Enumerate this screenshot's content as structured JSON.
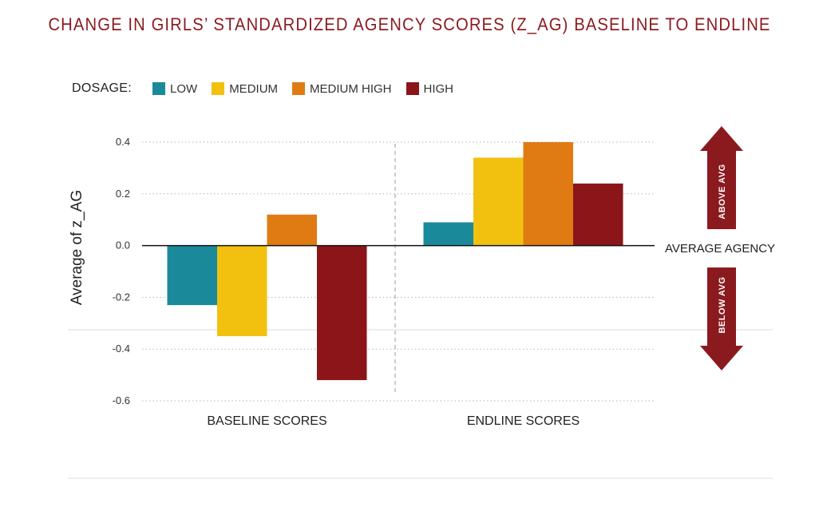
{
  "chart_data": {
    "type": "bar",
    "title": "CHANGE IN GIRLS’ STANDARDIZED AGENCY SCORES (Z_AG) BASELINE TO ENDLINE",
    "ylabel": "Average of z_AG",
    "xlabel": "",
    "categories": [
      "BASELINE SCORES",
      "ENDLINE SCORES"
    ],
    "legend_title": "DOSAGE:",
    "legend_position": "top-left",
    "series": [
      {
        "name": "LOW",
        "color": "#1a8a9b",
        "values": [
          -0.23,
          0.09
        ]
      },
      {
        "name": "MEDIUM",
        "color": "#f2c10f",
        "values": [
          -0.35,
          0.34
        ]
      },
      {
        "name": "MEDIUM HIGH",
        "color": "#e07b14",
        "values": [
          0.12,
          0.4
        ]
      },
      {
        "name": "HIGH",
        "color": "#8b1519",
        "values": [
          -0.52,
          0.24
        ]
      }
    ],
    "ylim": [
      -0.6,
      0.4
    ],
    "yticks": [
      0.4,
      0.2,
      0.0,
      -0.2,
      -0.4,
      -0.6
    ],
    "ytick_labels": [
      "0.4",
      "0.2",
      "0.0",
      "-0.2",
      "-0.4",
      "-0.6"
    ],
    "grid": "dotted horizontal",
    "reference_label": "AVERAGE AGENCY",
    "annotations": {
      "above": "ABOVE AVG",
      "below": "BELOW AVG"
    },
    "annotation_color": "#8b1a1f"
  }
}
